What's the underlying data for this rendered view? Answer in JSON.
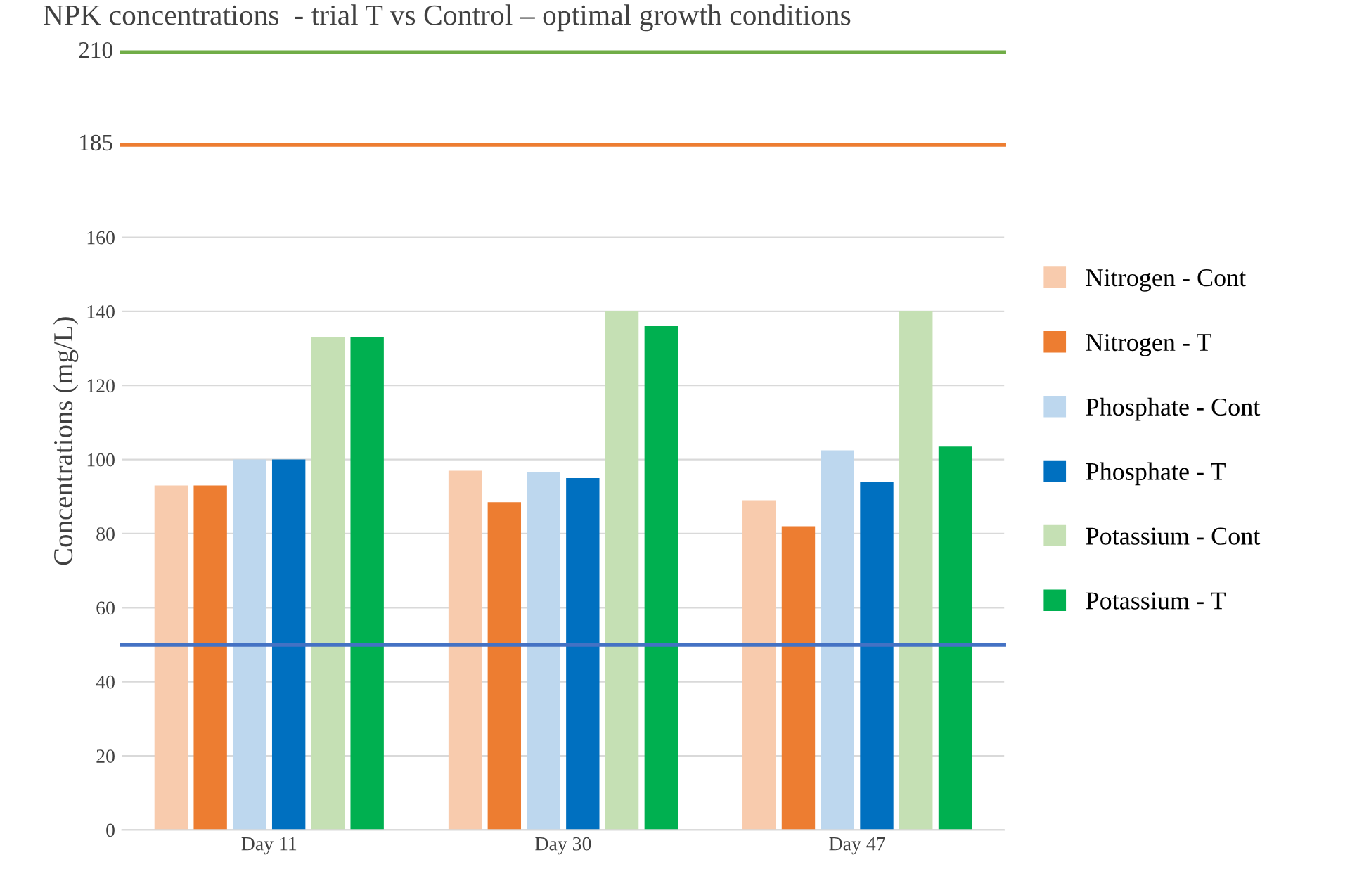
{
  "chart_data": {
    "type": "bar",
    "title": "NPK concentrations  - trial T vs Control – optimal growth conditions",
    "ylabel": "Concentrations (mg/L)",
    "categories": [
      "Day 11",
      "Day 30",
      "Day 47"
    ],
    "series": [
      {
        "name": "Nitrogen - Cont",
        "color": "#f8cbad",
        "values": [
          93,
          97,
          89
        ]
      },
      {
        "name": "Nitrogen - T",
        "color": "#ed7d31",
        "values": [
          93,
          88.5,
          82
        ]
      },
      {
        "name": "Phosphate - Cont",
        "color": "#bdd7ee",
        "values": [
          100,
          96.5,
          102.5
        ]
      },
      {
        "name": "Phosphate - T",
        "color": "#0070c0",
        "values": [
          100,
          95,
          94
        ]
      },
      {
        "name": "Potassium - Cont",
        "color": "#c5e0b4",
        "values": [
          133,
          140,
          140
        ]
      },
      {
        "name": "Potassium - T",
        "color": "#00b050",
        "values": [
          133,
          136,
          103.5
        ]
      }
    ],
    "ylim": [
      0,
      210
    ],
    "yticks": [
      0,
      20,
      40,
      60,
      80,
      100,
      120,
      140,
      160
    ],
    "ref_lines": [
      {
        "axis": "y",
        "value": 210,
        "label": "210",
        "color": "#70ad47"
      },
      {
        "axis": "y",
        "value": 185,
        "label": "185",
        "color": "#ed7d31"
      },
      {
        "axis": "y",
        "value": 50,
        "color": "#4472c4"
      }
    ],
    "grid": "y",
    "legend": "right"
  }
}
